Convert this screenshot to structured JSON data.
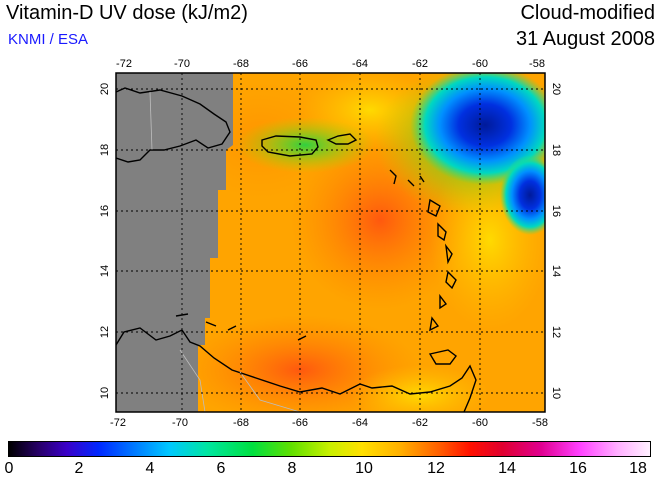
{
  "header": {
    "title": "Vitamin-D UV dose (kJ/m2)",
    "credit": "KNMI / ESA",
    "mode": "Cloud-modified",
    "date": "31 August 2008"
  },
  "map": {
    "lon_ticks": [
      "-72",
      "-70",
      "-68",
      "-66",
      "-64",
      "-62",
      "-60",
      "-58"
    ],
    "lat_ticks": [
      "20",
      "18",
      "16",
      "14",
      "12",
      "10"
    ],
    "no_data_color": "#808080",
    "coastline_color": "#000000",
    "grid_style": "dotted"
  },
  "colorbar": {
    "labels": [
      "0",
      "2",
      "4",
      "6",
      "8",
      "10",
      "12",
      "14",
      "16",
      "18"
    ]
  }
}
